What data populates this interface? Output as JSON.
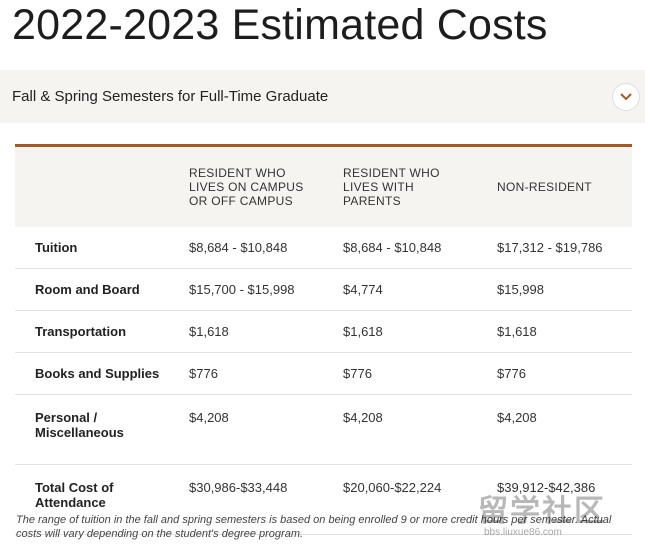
{
  "title": "2022-2023 Estimated Costs",
  "accordion": {
    "label": "Fall & Spring Semesters for Full-Time Graduate",
    "icon": "chevron-down-icon",
    "expanded": true
  },
  "colors": {
    "accent": "#a45a25",
    "header_bg": "#f5f4f1",
    "divider": "#e2e2e2"
  },
  "table": {
    "columns": [
      "",
      "RESIDENT WHO\nLIVES ON CAMPUS\nOR OFF CAMPUS",
      "RESIDENT WHO\nLIVES WITH\nPARENTS",
      "NON-RESIDENT"
    ],
    "rows": [
      {
        "label": "Tuition",
        "values": [
          "$8,684 - $10,848",
          "$8,684 - $10,848",
          "$17,312 - $19,786"
        ]
      },
      {
        "label": "Room and Board",
        "values": [
          "$15,700 - $15,998",
          "$4,774",
          "$15,998"
        ]
      },
      {
        "label": "Transportation",
        "values": [
          "$1,618",
          "$1,618",
          "$1,618"
        ]
      },
      {
        "label": "Books and Supplies",
        "values": [
          "$776",
          "$776",
          "$776"
        ]
      },
      {
        "label": "Personal /\nMiscellaneous",
        "values": [
          "$4,208",
          "$4,208",
          "$4,208"
        ]
      },
      {
        "label": "Total Cost of\nAttendance",
        "values": [
          "$30,986-$33,448",
          "$20,060-$22,224",
          "$39,912-$42,386"
        ]
      }
    ]
  },
  "footnote": "The range of tuition in the fall and spring semesters is based on being enrolled 9 or more credit hours per semester. Actual costs will vary depending on the student's degree program.",
  "watermark": {
    "text": "留学社区",
    "sub": "bbs.liuxue86.com"
  }
}
